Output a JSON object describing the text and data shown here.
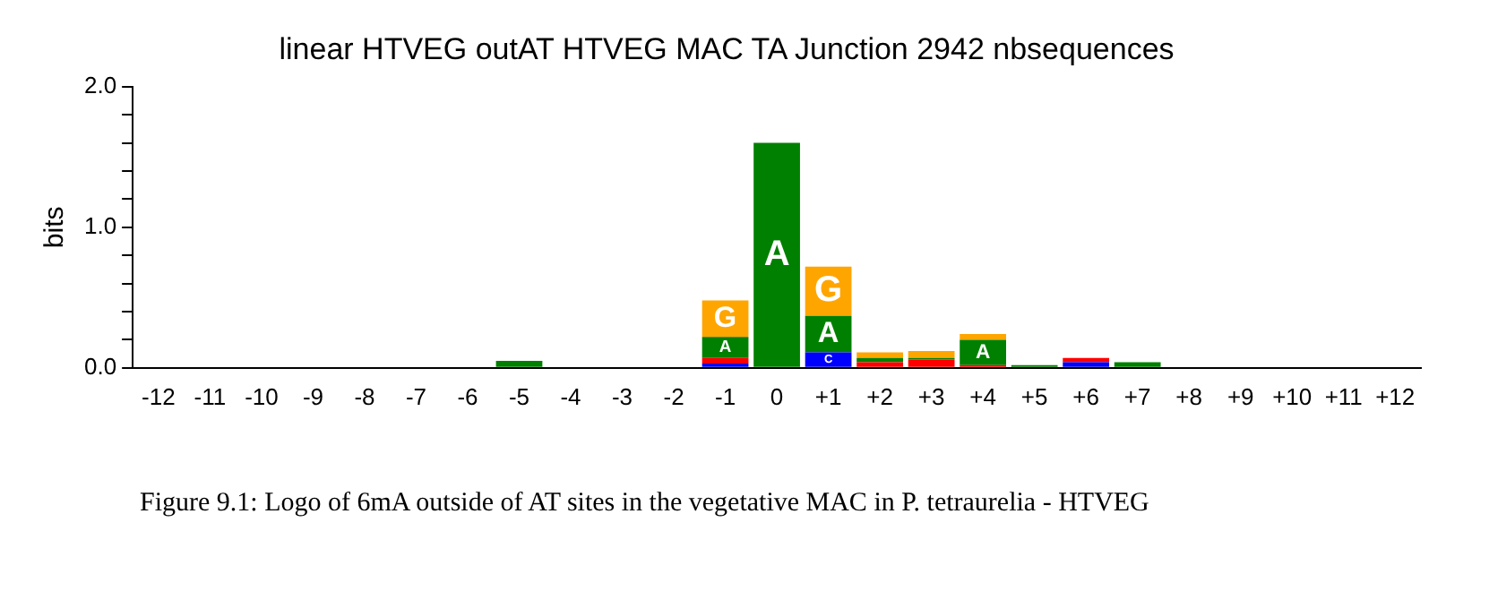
{
  "chart_data": {
    "type": "bar",
    "title": "linear HTVEG outAT HTVEG MAC TA Junction 2942 nbsequences",
    "ylabel": "bits",
    "stacked": true,
    "grid": false,
    "legend": false,
    "categories": [
      "-12",
      "-11",
      "-10",
      "-9",
      "-8",
      "-7",
      "-6",
      "-5",
      "-4",
      "-3",
      "-2",
      "-1",
      "0",
      "+1",
      "+2",
      "+3",
      "+4",
      "+5",
      "+6",
      "+7",
      "+8",
      "+9",
      "+10",
      "+11",
      "+12"
    ],
    "series": [
      {
        "name": "C",
        "color": "#0000ff",
        "values": [
          0,
          0,
          0,
          0,
          0,
          0,
          0,
          0,
          0,
          0,
          0,
          0.03,
          0,
          0.11,
          0,
          0,
          0,
          0,
          0.04,
          0,
          0,
          0,
          0,
          0,
          0
        ]
      },
      {
        "color": "#ff0000",
        "values": [
          0,
          0,
          0,
          0,
          0,
          0,
          0,
          0,
          0,
          0,
          0,
          0.04,
          0,
          0,
          0.04,
          0.06,
          0.02,
          0,
          0.03,
          0,
          0,
          0,
          0,
          0,
          0
        ]
      },
      {
        "name": "A",
        "color": "#008000",
        "values": [
          0,
          0,
          0,
          0,
          0,
          0,
          0,
          0.05,
          0,
          0,
          0,
          0.15,
          1.6,
          0.26,
          0.03,
          0.01,
          0.18,
          0.02,
          0,
          0.04,
          0,
          0,
          0,
          0,
          0
        ]
      },
      {
        "name": "G",
        "color": "#ffa500",
        "values": [
          0,
          0,
          0,
          0,
          0,
          0,
          0,
          0,
          0,
          0,
          0,
          0.26,
          0,
          0.35,
          0.04,
          0.05,
          0.04,
          0,
          0,
          0,
          0,
          0,
          0,
          0,
          0
        ]
      }
    ],
    "ylim": [
      0,
      2
    ],
    "yticks": [
      {
        "value": 0,
        "label": "0.0"
      },
      {
        "value": 0.2,
        "label": null
      },
      {
        "value": 0.4,
        "label": null
      },
      {
        "value": 0.6,
        "label": null
      },
      {
        "value": 0.8,
        "label": null
      },
      {
        "value": 1,
        "label": "1.0"
      },
      {
        "value": 1.2,
        "label": null
      },
      {
        "value": 1.4,
        "label": null
      },
      {
        "value": 1.6,
        "label": null
      },
      {
        "value": 1.8,
        "label": null
      },
      {
        "value": 2,
        "label": "2.0"
      }
    ],
    "annotations": [
      "Figure 9.1: Logo of 6mA outside of AT sites in the vegetative MAC in P. tetraurelia - HTVEG"
    ]
  }
}
